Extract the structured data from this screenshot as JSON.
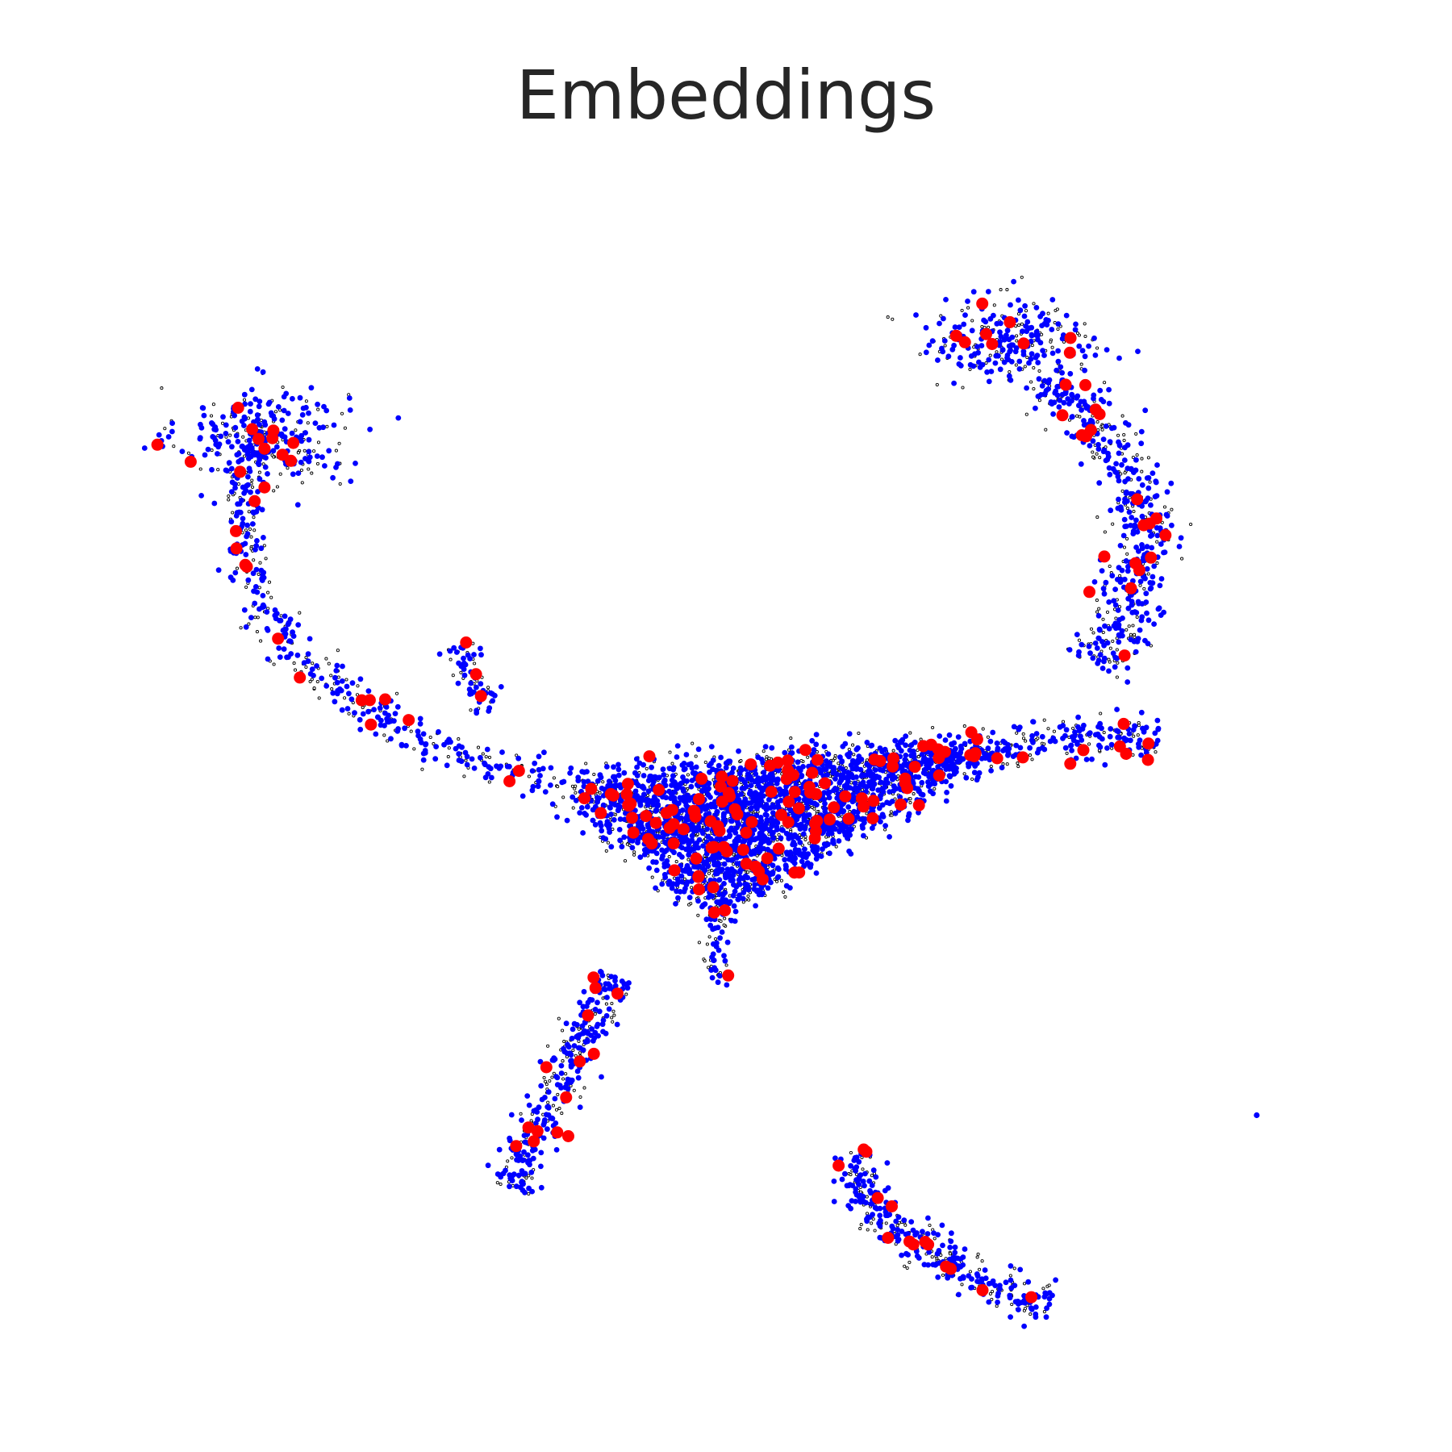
{
  "chart_data": {
    "type": "scatter",
    "title": "Embeddings",
    "xlabel": "",
    "ylabel": "",
    "axes_visible": false,
    "grid": false,
    "xlim": [
      0,
      100
    ],
    "ylim": [
      0,
      100
    ],
    "series": [
      {
        "role": "background",
        "color": "#000000",
        "fill": "#ffffff",
        "marker": "hollow-small",
        "density": 0.55
      },
      {
        "role": "primary",
        "color": "#0000ff",
        "marker": "dot",
        "density": 1.0
      },
      {
        "role": "highlight",
        "color": "#ff0000",
        "marker": "large-dot",
        "density": 0.06
      }
    ],
    "clusters": [
      {
        "name": "top-left-blob",
        "kind": "blob",
        "center": [
          12.5,
          77.5
        ],
        "spread": [
          3.4,
          2.1
        ],
        "count": 190
      },
      {
        "name": "left-arm",
        "kind": "path",
        "path": [
          [
            12.5,
            77.5
          ],
          [
            10.6,
            71.5
          ],
          [
            11.8,
            67.5
          ],
          [
            12.0,
            64.0
          ],
          [
            15.0,
            59.5
          ],
          [
            19.0,
            56.5
          ],
          [
            24.0,
            53.0
          ],
          [
            29.0,
            51.0
          ],
          [
            35.0,
            49.5
          ]
        ],
        "width": 0.9,
        "count": 260
      },
      {
        "name": "small-spur",
        "kind": "path",
        "path": [
          [
            28.5,
            60.5
          ],
          [
            29.5,
            57.0
          ],
          [
            31.0,
            55.0
          ]
        ],
        "width": 0.7,
        "count": 45
      },
      {
        "name": "main-body",
        "kind": "triangle",
        "vertices": [
          [
            36.0,
            49.0
          ],
          [
            72.0,
            52.5
          ],
          [
            49.5,
            38.0
          ]
        ],
        "count": 1900
      },
      {
        "name": "main-tip",
        "kind": "path",
        "path": [
          [
            49.5,
            38.5
          ],
          [
            49.0,
            35.0
          ],
          [
            50.0,
            32.0
          ]
        ],
        "width": 0.5,
        "count": 30
      },
      {
        "name": "right-arm-horizontal",
        "kind": "path",
        "path": [
          [
            66.0,
            50.5
          ],
          [
            72.0,
            51.5
          ],
          [
            78.0,
            53.0
          ],
          [
            85.0,
            52.5
          ]
        ],
        "width": 0.9,
        "count": 170
      },
      {
        "name": "top-right-blob",
        "kind": "blob",
        "center": [
          73.0,
          85.5
        ],
        "spread": [
          3.4,
          1.8
        ],
        "count": 170
      },
      {
        "name": "right-arm-vertical",
        "kind": "path",
        "path": [
          [
            76.0,
            82.5
          ],
          [
            80.0,
            79.0
          ],
          [
            82.0,
            75.5
          ],
          [
            84.0,
            72.0
          ],
          [
            83.5,
            66.5
          ],
          [
            82.0,
            62.0
          ],
          [
            80.0,
            58.5
          ]
        ],
        "width": 1.3,
        "count": 330
      },
      {
        "name": "lower-left-strip",
        "kind": "path",
        "path": [
          [
            41.0,
            33.0
          ],
          [
            39.0,
            29.0
          ],
          [
            36.5,
            24.0
          ],
          [
            34.0,
            19.5
          ],
          [
            32.5,
            15.5
          ]
        ],
        "width": 0.9,
        "count": 230
      },
      {
        "name": "lower-right-arc",
        "kind": "path",
        "path": [
          [
            60.0,
            18.5
          ],
          [
            61.5,
            14.0
          ],
          [
            64.5,
            11.5
          ],
          [
            69.0,
            9.0
          ],
          [
            73.0,
            6.5
          ],
          [
            76.5,
            6.0
          ]
        ],
        "width": 0.9,
        "count": 230
      },
      {
        "name": "outlier",
        "kind": "point",
        "point": [
          93.0,
          21.5
        ],
        "count": 1
      }
    ]
  }
}
